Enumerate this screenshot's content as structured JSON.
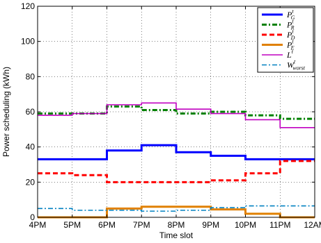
{
  "chart_data": {
    "type": "line",
    "xlabel": "Time slot",
    "ylabel": "Power scheduling (kWh)",
    "x_ticks": [
      "4PM",
      "5PM",
      "6PM",
      "7PM",
      "8PM",
      "9PM",
      "10PM",
      "11PM",
      "12AM"
    ],
    "y_ticks": [
      "0",
      "20",
      "40",
      "60",
      "80",
      "100",
      "120"
    ],
    "ylim": [
      0,
      120
    ],
    "xlim": [
      0,
      8
    ],
    "step": true,
    "grid": true,
    "legend_position": "top-right",
    "series": [
      {
        "id": "PG",
        "legend": {
          "main": "P",
          "sup": "t",
          "sub": "G"
        },
        "color": "#0000ff",
        "dash": "solid",
        "values": [
          33,
          33,
          38,
          41,
          37,
          35,
          33,
          33
        ]
      },
      {
        "id": "PR",
        "legend": {
          "main": "P",
          "sup": "t",
          "sub": "R"
        },
        "color": "#008000",
        "dash": "dashdot",
        "values": [
          59,
          59,
          63,
          61,
          59,
          60,
          58,
          56
        ]
      },
      {
        "id": "PD",
        "legend": {
          "main": "P",
          "sup": "t",
          "sub": "D"
        },
        "color": "#ff0000",
        "dash": "dashed",
        "values": [
          25,
          24,
          20,
          20,
          20,
          21,
          25,
          32
        ]
      },
      {
        "id": "PE",
        "legend": {
          "main": "P",
          "sup": "t",
          "sub": "E"
        },
        "color": "#e08000",
        "dash": "solid",
        "values": [
          0,
          0,
          5,
          6,
          6,
          4.5,
          2,
          0
        ]
      },
      {
        "id": "L",
        "legend": {
          "main": "L",
          "sup": "t",
          "sub": ""
        },
        "color": "#c000c0",
        "dash": "solid",
        "values": [
          58,
          59,
          64,
          65,
          61.5,
          59,
          55.5,
          51
        ]
      },
      {
        "id": "W",
        "legend": {
          "main": "W",
          "sup": "t",
          "sub": "worst"
        },
        "color": "#0080c0",
        "dash": "dashdot",
        "values": [
          5,
          4,
          4,
          3.5,
          4,
          5.5,
          6.5,
          6.5
        ]
      }
    ]
  }
}
